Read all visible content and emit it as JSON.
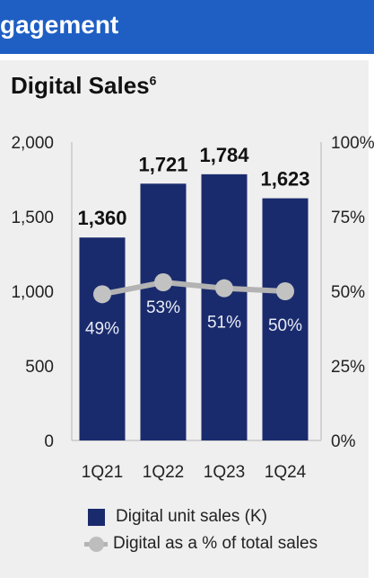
{
  "header": {
    "title": "gagement"
  },
  "panel": {
    "title": "Digital Sales",
    "title_superscript": "6"
  },
  "chart_data": {
    "type": "bar",
    "categories": [
      "1Q21",
      "1Q22",
      "1Q23",
      "1Q24"
    ],
    "series": [
      {
        "name": "Digital unit sales (K)",
        "type": "bar",
        "axis": "left",
        "values": [
          1360,
          1721,
          1784,
          1623
        ],
        "labels": [
          "1,360",
          "1,721",
          "1,784",
          "1,623"
        ]
      },
      {
        "name": "Digital as a % of total sales",
        "type": "line",
        "axis": "right",
        "values": [
          49,
          53,
          51,
          50
        ],
        "labels": [
          "49%",
          "53%",
          "51%",
          "50%"
        ]
      }
    ],
    "y_left": {
      "ticks": [
        "0",
        "500",
        "1,000",
        "1,500",
        "2,000"
      ],
      "ylim": [
        0,
        2000
      ]
    },
    "y_right": {
      "ticks": [
        "0%",
        "25%",
        "50%",
        "75%",
        "100%"
      ],
      "ylim": [
        0,
        100
      ]
    },
    "grid": false,
    "legend": "bottom",
    "colors": {
      "bar": "#1a2b6d",
      "line": "#b3b3b3",
      "header": "#1f5fc4"
    }
  }
}
